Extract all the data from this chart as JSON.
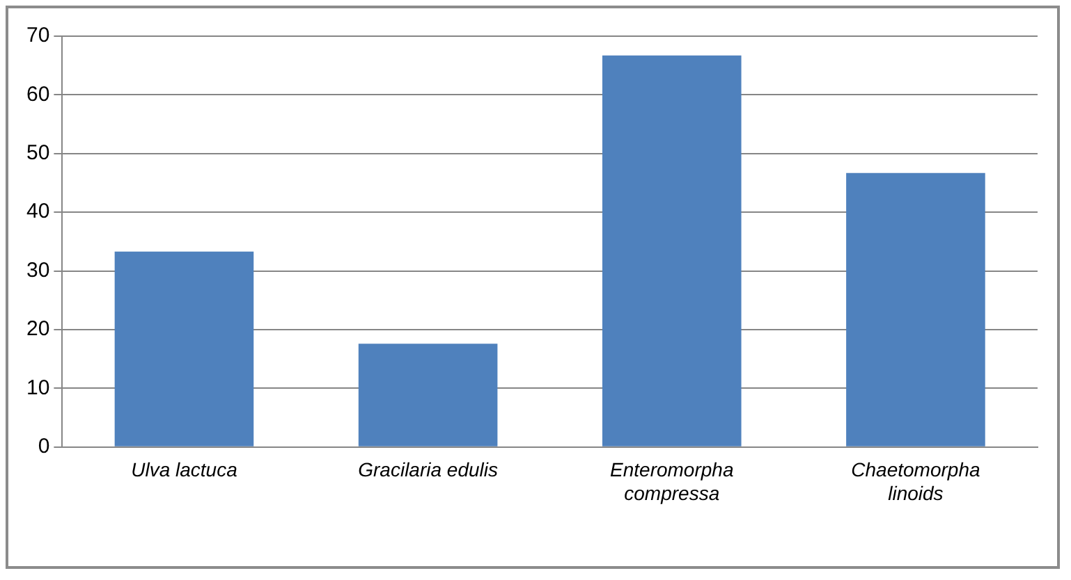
{
  "chart_data": {
    "type": "bar",
    "categories": [
      "Ulva lactuca",
      "Gracilaria edulis",
      "Enteromorpha compressa",
      "Chaetomorpha linoids"
    ],
    "values": [
      33.3,
      17.6,
      66.7,
      46.7
    ],
    "color": "#4f81bd",
    "ylim": [
      0,
      70
    ],
    "yticks": [
      0,
      10,
      20,
      30,
      40,
      50,
      60,
      70
    ],
    "grid": "y",
    "legend": false
  }
}
